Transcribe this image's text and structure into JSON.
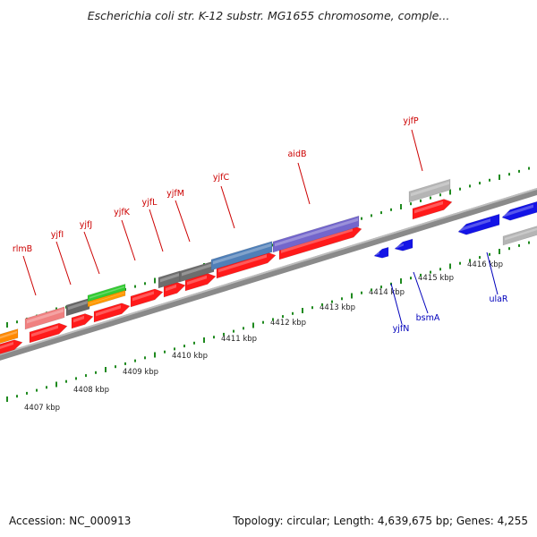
{
  "title": "Escherichia coli str. K-12 substr. MG1655 chromosome, comple...",
  "footer": {
    "accession": "Accession: NC_000913",
    "stats": "Topology: circular; Length: 4,639,675 bp; Genes: 4,255"
  },
  "colors": {
    "forward_gene": "#ff1a1a",
    "reverse_gene": "#1414e6",
    "forward_label": "#cc0000",
    "reverse_label": "#0000bb",
    "backbone": "#7a7a7a",
    "tick": "#1f8a1f",
    "kbp_label": "#222222"
  },
  "scale": {
    "unit": "kbp",
    "labels": [
      "4407 kbp",
      "4408 kbp",
      "4409 kbp",
      "4410 kbp",
      "4411 kbp",
      "4412 kbp",
      "4413 kbp",
      "4414 kbp",
      "4415 kbp",
      "4416 kbp"
    ]
  },
  "gene_labels": {
    "forward": [
      "rlmB",
      "yjfI",
      "yjfJ",
      "yjfK",
      "yjfL",
      "yjfM",
      "yjfC",
      "aidB",
      "yjfP"
    ],
    "reverse": [
      "yjfN",
      "bsmA",
      "ulaR"
    ]
  }
}
